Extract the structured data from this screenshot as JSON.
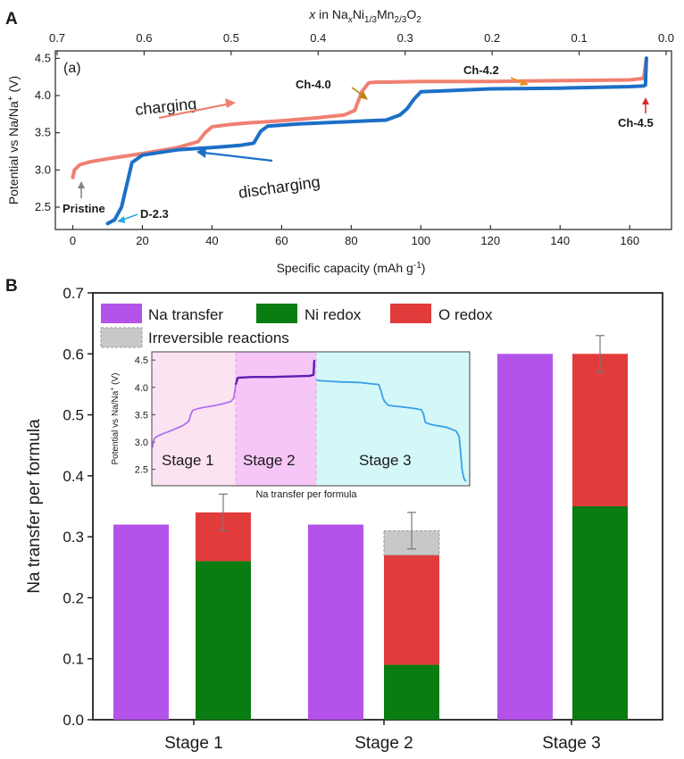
{
  "panel_a": {
    "letter": "A",
    "sub_label": "(a)",
    "top_axis_label": "x in NaxNi1/3Mn2/3O2",
    "top_axis_ticks": [
      "0.7",
      "0.6",
      "0.5",
      "0.4",
      "0.3",
      "0.2",
      "0.1",
      "0.0"
    ],
    "annotations": {
      "charging": "charging",
      "discharging": "discharging",
      "pristine": "Pristine",
      "d23": "D-2.3",
      "ch40": "Ch-4.0",
      "ch42": "Ch-4.2",
      "ch45": "Ch-4.5"
    },
    "colors": {
      "charge": "#f08072",
      "discharge": "#1c6fc7",
      "ch40": "#b8860b",
      "ch42": "#e8901e",
      "ch45": "#d62b2b",
      "d23": "#29a8e0",
      "pristine": "#808080"
    }
  },
  "panel_b": {
    "letter": "B",
    "legend": {
      "na": "Na transfer",
      "ni": "Ni redox",
      "o": "O redox",
      "irr": "Irreversible reactions"
    },
    "colors": {
      "na": "#b353ea",
      "ni": "#0a7d12",
      "o": "#e23b3b",
      "irr": "#c8c8c8"
    },
    "inset": {
      "ylabel": "Potential vs Na/Na+ (V)",
      "xlabel": "Na transfer per formula",
      "yticks": [
        "2.5",
        "3.0",
        "3.5",
        "4.0",
        "4.5"
      ],
      "stages": [
        "Stage 1",
        "Stage 2",
        "Stage 3"
      ],
      "stage_colors": [
        "#fbe3f1",
        "#f6c6f7",
        "#d4f7f7"
      ]
    }
  },
  "chart_data": [
    {
      "type": "line",
      "xlabel": "Specific capacity (mAh g-1)",
      "ylabel": "Potential vs Na/Na+ (V)",
      "xlim": [
        -5,
        172
      ],
      "ylim": [
        2.2,
        4.6
      ],
      "xticks": [
        0,
        20,
        40,
        60,
        80,
        100,
        120,
        140,
        160
      ],
      "yticks": [
        2.5,
        3.0,
        3.5,
        4.0,
        4.5
      ],
      "series": [
        {
          "name": "charging",
          "x": [
            0,
            0.5,
            2,
            5,
            10,
            20,
            30,
            36,
            38,
            40,
            45,
            50,
            60,
            70,
            78,
            81,
            83,
            85,
            87,
            90,
            100,
            120,
            140,
            160,
            164,
            164.8
          ],
          "y": [
            2.9,
            3.0,
            3.07,
            3.11,
            3.15,
            3.22,
            3.3,
            3.38,
            3.5,
            3.58,
            3.61,
            3.63,
            3.66,
            3.7,
            3.74,
            3.8,
            4.05,
            4.17,
            4.18,
            4.18,
            4.19,
            4.19,
            4.2,
            4.21,
            4.23,
            4.5
          ]
        },
        {
          "name": "discharging",
          "x": [
            164.8,
            164.5,
            164,
            160,
            140,
            120,
            100,
            98,
            96,
            94,
            90,
            85,
            75,
            65,
            56,
            54,
            52,
            48,
            40,
            30,
            20,
            17,
            16,
            15,
            14,
            12,
            10
          ],
          "y": [
            4.5,
            4.14,
            4.13,
            4.12,
            4.1,
            4.09,
            4.05,
            3.95,
            3.82,
            3.74,
            3.67,
            3.66,
            3.64,
            3.62,
            3.59,
            3.52,
            3.36,
            3.33,
            3.3,
            3.27,
            3.2,
            3.1,
            2.9,
            2.7,
            2.5,
            2.33,
            2.28
          ]
        }
      ]
    },
    {
      "type": "bar",
      "ylabel": "Na transfer per formula",
      "ylim": [
        0,
        0.7
      ],
      "yticks": [
        0.0,
        0.1,
        0.2,
        0.3,
        0.4,
        0.5,
        0.6,
        0.7
      ],
      "categories": [
        "Stage 1",
        "Stage 2",
        "Stage 3"
      ],
      "series": [
        {
          "name": "Na transfer",
          "values": [
            0.32,
            0.32,
            0.6
          ]
        },
        {
          "name": "Ni redox",
          "values": [
            0.26,
            0.09,
            0.35
          ]
        },
        {
          "name": "O redox",
          "values": [
            0.08,
            0.18,
            0.25
          ]
        },
        {
          "name": "Irreversible reactions",
          "values": [
            0,
            0.04,
            0
          ]
        }
      ],
      "error": [
        0.03,
        0.03,
        0.03
      ]
    }
  ]
}
